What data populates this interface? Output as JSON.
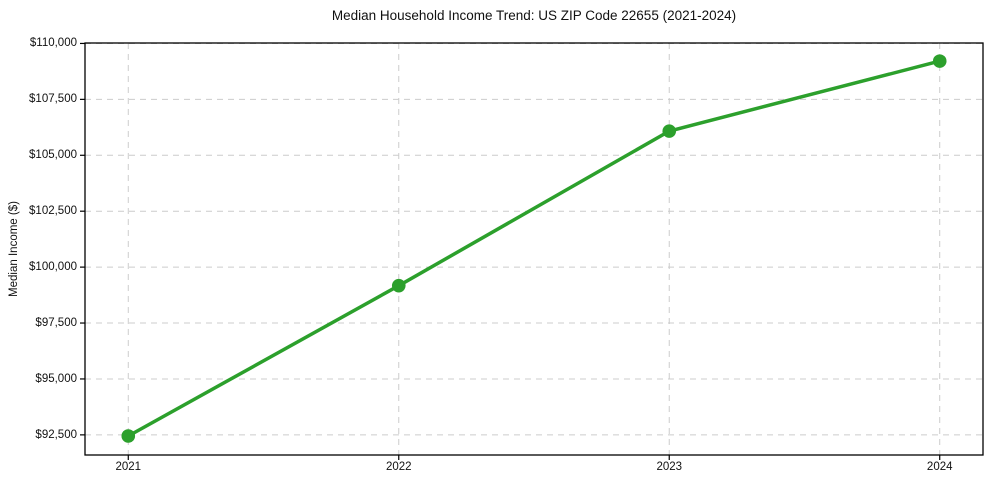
{
  "colors": {
    "line": "#2ca02c",
    "grid": "#cccccc",
    "axis": "#000000",
    "text": "#111111",
    "background": "#ffffff"
  },
  "chart_data": {
    "type": "line",
    "title": "Median Household Income Trend: US ZIP Code 22655 (2021-2024)",
    "xlabel": "",
    "ylabel": "Median Income ($)",
    "x": [
      2021,
      2022,
      2023,
      2024
    ],
    "values": [
      92450,
      99170,
      106080,
      109210
    ],
    "x_tick_labels": [
      "2021",
      "2022",
      "2023",
      "2024"
    ],
    "y_ticks": [
      92500,
      95000,
      97500,
      100000,
      102500,
      105000,
      107500,
      110000
    ],
    "y_tick_labels": [
      "$92,500",
      "$95,000",
      "$97,500",
      "$100,000",
      "$102,500",
      "$105,000",
      "$107,500",
      "$110,000"
    ],
    "ylim": [
      91600,
      110020
    ],
    "xlim": [
      2020.84,
      2024.16
    ],
    "grid": true,
    "grid_style": "dashed",
    "legend": false,
    "marker": "circle",
    "series_name": "Median household income"
  }
}
